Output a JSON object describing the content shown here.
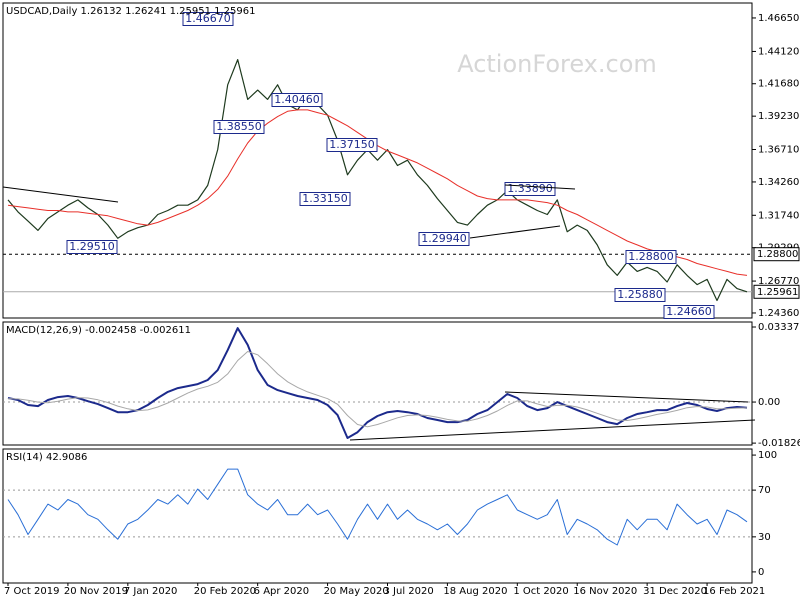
{
  "chart_data": [
    {
      "type": "line",
      "title": "USDCAD,Daily  1.26132 1.26241 1.25951 1.25961",
      "watermark": "ActionForex.com",
      "ylim": [
        1.2398,
        1.4778
      ],
      "yticks": [
        {
          "value": 1.4665,
          "label": "1.46650"
        },
        {
          "value": 1.4412,
          "label": "1.44120"
        },
        {
          "value": 1.4168,
          "label": "1.41680"
        },
        {
          "value": 1.3923,
          "label": "1.39230"
        },
        {
          "value": 1.3671,
          "label": "1.36710"
        },
        {
          "value": 1.3426,
          "label": "1.34260"
        },
        {
          "value": 1.3174,
          "label": "1.31740"
        },
        {
          "value": 1.2929,
          "label": "1.29290"
        },
        {
          "value": 1.2677,
          "label": "1.26770"
        },
        {
          "value": 1.2436,
          "label": "1.24360"
        }
      ],
      "reference_lines": [
        {
          "value": 1.288,
          "label": "1.28800",
          "style": "dashed"
        },
        {
          "value": 1.25961,
          "label": "1.25961",
          "style": "solid"
        }
      ],
      "annotations": [
        "1.46670",
        "1.40460",
        "1.38550",
        "1.37150",
        "1.33150",
        "1.33890",
        "1.29940",
        "1.29510",
        "1.28800",
        "1.25880",
        "1.24660"
      ],
      "series": [
        {
          "color": "#1e3a1e",
          "width": 1.2,
          "values": [
            1.329,
            1.32,
            1.313,
            1.306,
            1.315,
            1.32,
            1.325,
            1.329,
            1.323,
            1.318,
            1.31,
            1.3,
            1.305,
            1.308,
            1.31,
            1.318,
            1.321,
            1.325,
            1.325,
            1.329,
            1.34,
            1.367,
            1.416,
            1.435,
            1.405,
            1.412,
            1.405,
            1.416,
            1.401,
            1.397,
            1.408,
            1.401,
            1.393,
            1.374,
            1.348,
            1.359,
            1.367,
            1.359,
            1.367,
            1.355,
            1.359,
            1.348,
            1.34,
            1.33,
            1.321,
            1.312,
            1.31,
            1.318,
            1.325,
            1.329,
            1.336,
            1.329,
            1.325,
            1.321,
            1.318,
            1.329,
            1.305,
            1.31,
            1.306,
            1.295,
            1.28,
            1.272,
            1.282,
            1.275,
            1.278,
            1.275,
            1.267,
            1.28,
            1.272,
            1.265,
            1.269,
            1.253,
            1.269,
            1.262,
            1.25961
          ]
        },
        {
          "color": "#e8302a",
          "width": 1,
          "values": [
            1.325,
            1.324,
            1.323,
            1.322,
            1.321,
            1.321,
            1.32,
            1.32,
            1.319,
            1.318,
            1.317,
            1.315,
            1.313,
            1.311,
            1.31,
            1.312,
            1.315,
            1.318,
            1.321,
            1.325,
            1.33,
            1.337,
            1.347,
            1.36,
            1.372,
            1.381,
            1.387,
            1.392,
            1.396,
            1.397,
            1.397,
            1.395,
            1.393,
            1.389,
            1.385,
            1.38,
            1.375,
            1.37,
            1.366,
            1.363,
            1.36,
            1.357,
            1.353,
            1.349,
            1.345,
            1.34,
            1.336,
            1.332,
            1.33,
            1.329,
            1.329,
            1.329,
            1.329,
            1.328,
            1.327,
            1.325,
            1.321,
            1.318,
            1.314,
            1.31,
            1.306,
            1.302,
            1.298,
            1.295,
            1.292,
            1.29,
            1.288,
            1.286,
            1.284,
            1.281,
            1.279,
            1.277,
            1.275,
            1.273,
            1.272
          ]
        }
      ]
    },
    {
      "type": "line",
      "title": "MACD(12,26,9) -0.002458 -0.002611",
      "ylim": [
        -0.0191,
        0.0356
      ],
      "yticks": [
        0.03337,
        {
          "value": 0,
          "label": "0.00"
        },
        -0.018262
      ],
      "levels": [
        0
      ],
      "series": [
        {
          "color": "#1c2a8c",
          "width": 2,
          "values": [
            0.0018,
            0.0009,
            -0.0013,
            -0.0018,
            0.0009,
            0.0022,
            0.0027,
            0.0018,
            0.0004,
            -0.0009,
            -0.0027,
            -0.0045,
            -0.0045,
            -0.0036,
            -0.0013,
            0.0018,
            0.0045,
            0.0062,
            0.0071,
            0.008,
            0.0098,
            0.0142,
            0.0231,
            0.0329,
            0.0254,
            0.0142,
            0.0076,
            0.0053,
            0.004,
            0.0027,
            0.0018,
            0.0009,
            -0.0013,
            -0.0058,
            -0.016,
            -0.0134,
            -0.0089,
            -0.0062,
            -0.0045,
            -0.004,
            -0.0045,
            -0.0053,
            -0.0071,
            -0.008,
            -0.0089,
            -0.0089,
            -0.008,
            -0.0053,
            -0.0036,
            0.0,
            0.0036,
            0.0018,
            -0.0018,
            -0.0036,
            -0.0027,
            0.0,
            -0.0018,
            -0.0036,
            -0.0053,
            -0.0071,
            -0.0089,
            -0.0098,
            -0.0071,
            -0.0053,
            -0.0045,
            -0.0036,
            -0.0036,
            -0.0018,
            -0.0004,
            -0.0013,
            -0.0031,
            -0.004,
            -0.0027,
            -0.0022,
            -0.0025
          ]
        },
        {
          "color": "#a8a8a8",
          "width": 1,
          "values": [
            0.0015,
            0.0014,
            0.0008,
            0.0,
            -0.0003,
            0.0004,
            0.0013,
            0.002,
            0.0018,
            0.001,
            -0.0002,
            -0.0018,
            -0.003,
            -0.0038,
            -0.0035,
            -0.0022,
            -0.0004,
            0.0018,
            0.004,
            0.0058,
            0.007,
            0.0088,
            0.0125,
            0.0185,
            0.0225,
            0.021,
            0.017,
            0.0125,
            0.009,
            0.0065,
            0.0045,
            0.003,
            0.0015,
            -0.001,
            -0.006,
            -0.01,
            -0.011,
            -0.01,
            -0.0085,
            -0.007,
            -0.006,
            -0.0057,
            -0.006,
            -0.0068,
            -0.0077,
            -0.0084,
            -0.0085,
            -0.0075,
            -0.006,
            -0.004,
            -0.0015,
            0.0005,
            0.0005,
            -0.0008,
            -0.002,
            -0.0015,
            -0.0014,
            -0.0022,
            -0.0035,
            -0.005,
            -0.0065,
            -0.008,
            -0.0082,
            -0.0075,
            -0.0065,
            -0.0055,
            -0.0047,
            -0.0037,
            -0.0025,
            -0.002,
            -0.0022,
            -0.003,
            -0.003,
            -0.0027,
            -0.0026
          ]
        }
      ]
    },
    {
      "type": "line",
      "title": "RSI(14) 42.9086",
      "ylim": [
        -9.5,
        105.2
      ],
      "yticks": [
        100,
        70,
        30,
        0
      ],
      "levels": [
        70,
        30
      ],
      "categories": [
        "7 Oct 2019",
        null,
        null,
        null,
        null,
        null,
        "20 Nov 2019",
        null,
        null,
        null,
        null,
        null,
        "7 Jan 2020",
        null,
        null,
        null,
        null,
        null,
        null,
        "20 Feb 2020",
        null,
        null,
        null,
        null,
        null,
        "6 Apr 2020",
        null,
        null,
        null,
        null,
        null,
        null,
        "20 May 2020",
        null,
        null,
        null,
        null,
        null,
        "3 Jul 2020",
        null,
        null,
        null,
        null,
        null,
        "18 Aug 2020",
        null,
        null,
        null,
        null,
        null,
        null,
        "1 Oct 2020",
        null,
        null,
        null,
        null,
        null,
        "16 Nov 2020",
        null,
        null,
        null,
        null,
        null,
        null,
        "31 Dec 2020",
        null,
        null,
        null,
        null,
        null,
        "16 Feb 2021",
        null,
        null,
        null,
        null
      ],
      "series": [
        {
          "color": "#2a6fd6",
          "width": 1,
          "values": [
            62,
            49,
            32,
            45,
            58,
            53,
            62,
            58,
            49,
            45,
            36,
            28,
            41,
            45,
            53,
            62,
            58,
            66,
            58,
            71,
            62,
            75,
            88,
            88,
            66,
            58,
            53,
            62,
            49,
            49,
            58,
            49,
            53,
            41,
            28,
            45,
            58,
            45,
            58,
            45,
            53,
            45,
            41,
            36,
            41,
            32,
            41,
            53,
            58,
            62,
            66,
            53,
            49,
            45,
            49,
            62,
            32,
            45,
            41,
            36,
            28,
            23,
            45,
            36,
            45,
            45,
            36,
            58,
            49,
            41,
            45,
            32,
            53,
            49,
            42.9086
          ]
        }
      ]
    }
  ]
}
